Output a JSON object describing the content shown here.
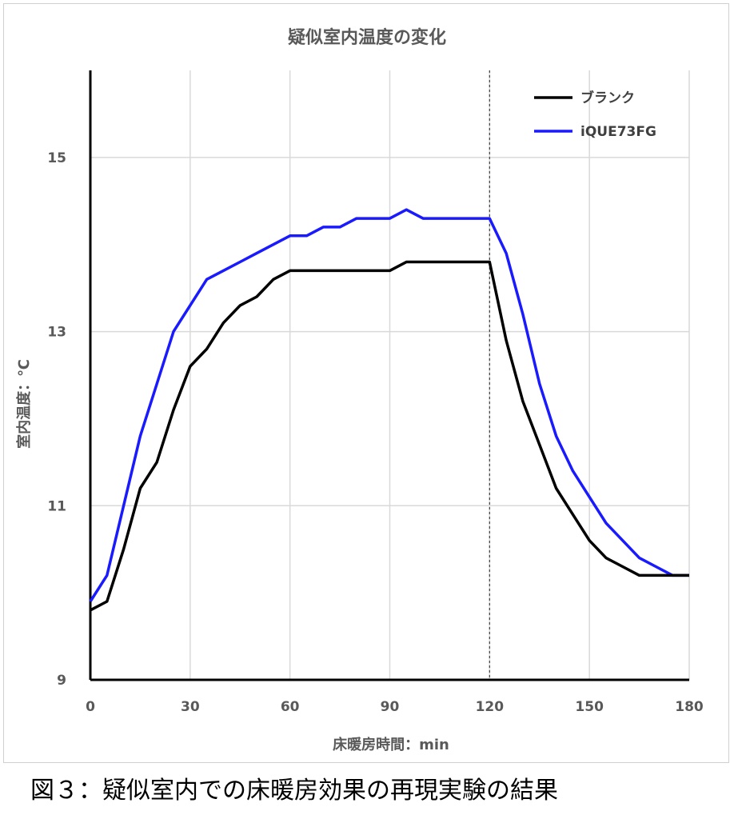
{
  "chart_data": {
    "type": "line",
    "title": "疑似室内温度の変化",
    "xlabel": "床暖房時間：min",
    "ylabel": "室内温度：℃",
    "xlim": [
      0,
      180
    ],
    "ylim": [
      9,
      16
    ],
    "xticks": [
      0,
      30,
      60,
      90,
      120,
      150,
      180
    ],
    "yticks": [
      9,
      11,
      13,
      15
    ],
    "grid": true,
    "legend_position": "top-right",
    "reference_line_x": 120,
    "series": [
      {
        "name": "ブランク",
        "color": "#000000",
        "x": [
          0,
          5,
          10,
          15,
          20,
          25,
          30,
          35,
          40,
          45,
          50,
          55,
          60,
          65,
          70,
          75,
          80,
          85,
          90,
          95,
          100,
          105,
          110,
          115,
          120,
          125,
          130,
          135,
          140,
          145,
          150,
          155,
          160,
          165,
          170,
          175,
          180
        ],
        "values": [
          9.8,
          9.9,
          10.5,
          11.2,
          11.5,
          12.1,
          12.6,
          12.8,
          13.1,
          13.3,
          13.4,
          13.6,
          13.7,
          13.7,
          13.7,
          13.7,
          13.7,
          13.7,
          13.7,
          13.8,
          13.8,
          13.8,
          13.8,
          13.8,
          13.8,
          12.9,
          12.2,
          11.7,
          11.2,
          10.9,
          10.6,
          10.4,
          10.3,
          10.2,
          10.2,
          10.2,
          10.2
        ]
      },
      {
        "name": "iQUE73FG",
        "color": "#1a1aff",
        "x": [
          0,
          5,
          10,
          15,
          20,
          25,
          30,
          35,
          40,
          45,
          50,
          55,
          60,
          65,
          70,
          75,
          80,
          85,
          90,
          95,
          100,
          105,
          110,
          115,
          120,
          125,
          130,
          135,
          140,
          145,
          150,
          155,
          160,
          165,
          170,
          175,
          180
        ],
        "values": [
          9.9,
          10.2,
          11.0,
          11.8,
          12.4,
          13.0,
          13.3,
          13.6,
          13.7,
          13.8,
          13.9,
          14.0,
          14.1,
          14.1,
          14.2,
          14.2,
          14.3,
          14.3,
          14.3,
          14.4,
          14.3,
          14.3,
          14.3,
          14.3,
          14.3,
          13.9,
          13.2,
          12.4,
          11.8,
          11.4,
          11.1,
          10.8,
          10.6,
          10.4,
          10.3,
          10.2,
          10.2
        ]
      }
    ]
  },
  "caption": "図３：疑似室内での床暖房効果の再現実験の結果"
}
